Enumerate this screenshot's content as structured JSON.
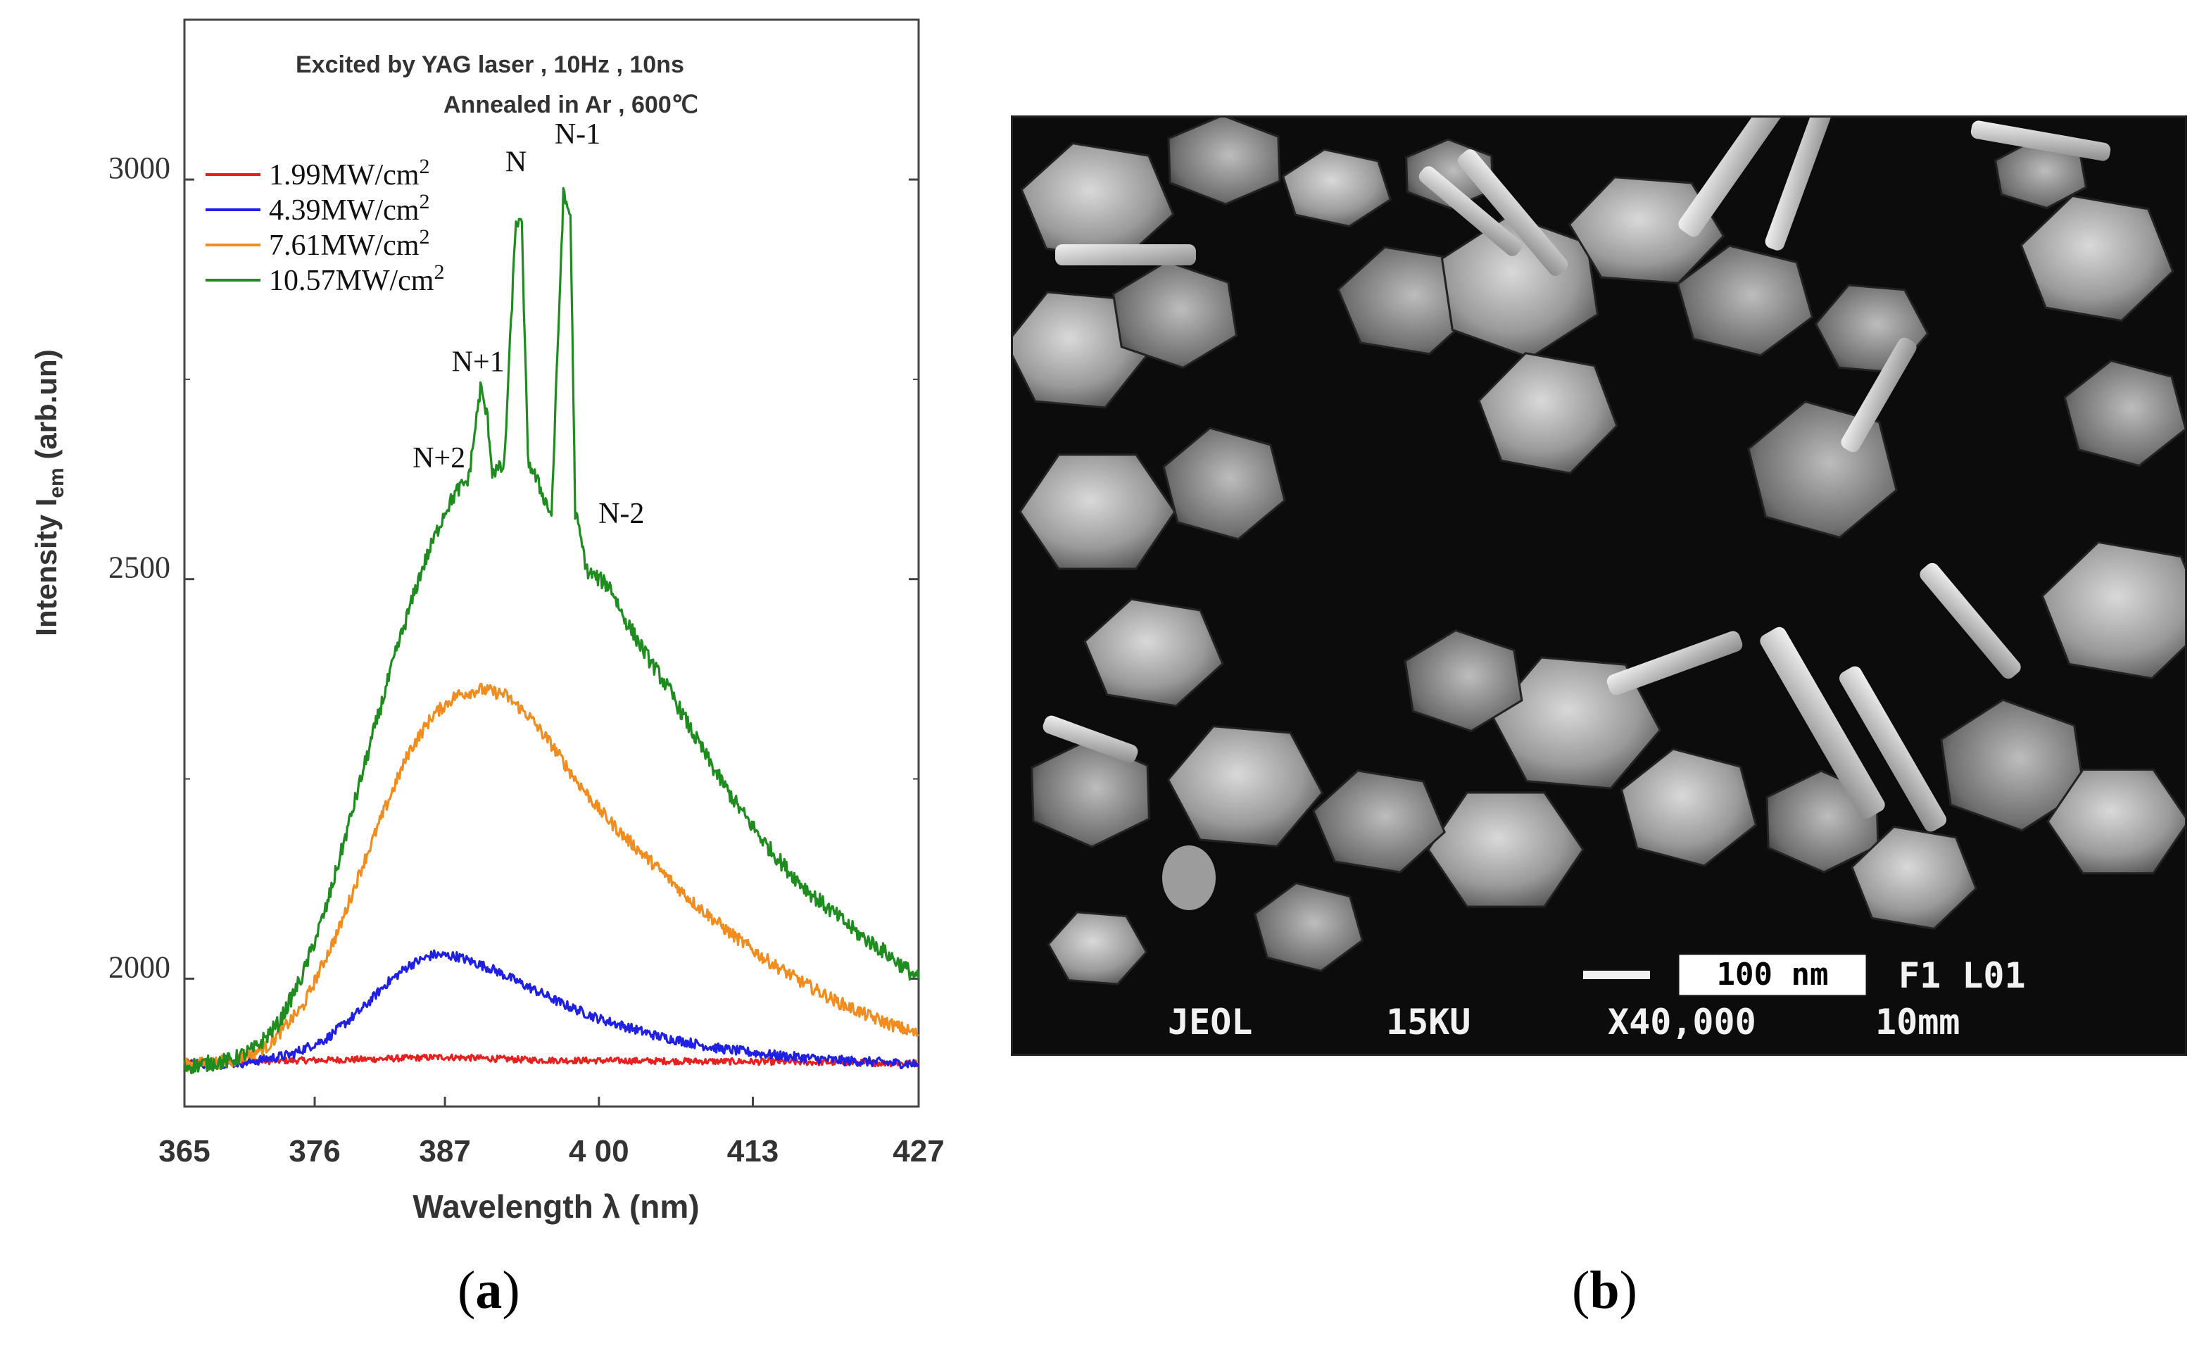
{
  "figure_a": {
    "panel_label": "a",
    "chart_data": {
      "type": "line",
      "title_line1": "Excited by YAG laser , 10Hz , 10ns",
      "title_line2": "Annealed in Ar , 600℃",
      "xlabel": "Wavelength λ (nm)",
      "ylabel_main": "Intensity I",
      "ylabel_sub": "em",
      "ylabel_unit": " (arb.un)",
      "xlim": [
        365,
        427
      ],
      "ylim": [
        1840,
        3200
      ],
      "x_ticks": [
        365,
        376,
        387,
        400,
        413,
        427
      ],
      "x_tick_labels": [
        "365",
        "376",
        "387",
        "4 00",
        "413",
        "427"
      ],
      "y_ticks": [
        2000,
        2500,
        3000
      ],
      "y_tick_labels": [
        "2000",
        "2500",
        "3000"
      ],
      "legend_position": "top-left",
      "series": [
        {
          "name": "1.99MW/cm",
          "sup": "2",
          "color": "#e8211f",
          "noise": 4,
          "points": [
            [
              365,
              1895
            ],
            [
              372,
              1897
            ],
            [
              380,
              1899
            ],
            [
              387,
              1902
            ],
            [
              395,
              1898
            ],
            [
              405,
              1897
            ],
            [
              415,
              1896
            ],
            [
              427,
              1894
            ]
          ]
        },
        {
          "name": "4.39MW/cm",
          "sup": "2",
          "color": "#1f1fe6",
          "noise": 6,
          "points": [
            [
              365,
              1893
            ],
            [
              370,
              1895
            ],
            [
              374,
              1905
            ],
            [
              377,
              1925
            ],
            [
              380,
              1962
            ],
            [
              382,
              1993
            ],
            [
              384,
              2017
            ],
            [
              386,
              2030
            ],
            [
              388,
              2028
            ],
            [
              391,
              2012
            ],
            [
              394,
              1990
            ],
            [
              397,
              1968
            ],
            [
              400,
              1950
            ],
            [
              405,
              1928
            ],
            [
              410,
              1913
            ],
            [
              415,
              1904
            ],
            [
              420,
              1898
            ],
            [
              427,
              1893
            ]
          ]
        },
        {
          "name": "7.61MW/cm",
          "sup": "2",
          "color": "#f28c1e",
          "noise": 8,
          "points": [
            [
              365,
              1892
            ],
            [
              369,
              1897
            ],
            [
              372,
              1915
            ],
            [
              375,
              1965
            ],
            [
              378,
              2060
            ],
            [
              380,
              2140
            ],
            [
              382,
              2215
            ],
            [
              384,
              2285
            ],
            [
              386,
              2330
            ],
            [
              388,
              2355
            ],
            [
              390,
              2362
            ],
            [
              392,
              2356
            ],
            [
              394,
              2330
            ],
            [
              396,
              2293
            ],
            [
              398,
              2250
            ],
            [
              400,
              2212
            ],
            [
              402,
              2180
            ],
            [
              405,
              2138
            ],
            [
              408,
              2095
            ],
            [
              411,
              2058
            ],
            [
              414,
              2025
            ],
            [
              417,
              1997
            ],
            [
              420,
              1972
            ],
            [
              423,
              1952
            ],
            [
              427,
              1930
            ]
          ]
        },
        {
          "name": "10.57MW/cm",
          "sup": "2",
          "color": "#1e8c1e",
          "noise": 10,
          "points": [
            [
              365,
              1890
            ],
            [
              369,
              1898
            ],
            [
              371,
              1913
            ],
            [
              373,
              1945
            ],
            [
              375,
              2005
            ],
            [
              377,
              2090
            ],
            [
              379,
              2200
            ],
            [
              381,
              2310
            ],
            [
              383,
              2415
            ],
            [
              385,
              2510
            ],
            [
              387,
              2585
            ],
            [
              388,
              2610
            ],
            [
              389,
              2625
            ],
            [
              390,
              2740
            ],
            [
              390.6,
              2700
            ],
            [
              391,
              2635
            ],
            [
              392,
              2640
            ],
            [
              393,
              2950
            ],
            [
              393.5,
              2940
            ],
            [
              394,
              2650
            ],
            [
              395,
              2615
            ],
            [
              396,
              2580
            ],
            [
              397,
              2980
            ],
            [
              397.6,
              2955
            ],
            [
              398,
              2585
            ],
            [
              399,
              2510
            ],
            [
              400,
              2500
            ],
            [
              401,
              2490
            ],
            [
              402,
              2455
            ],
            [
              404,
              2405
            ],
            [
              406,
              2360
            ],
            [
              408,
              2305
            ],
            [
              410,
              2255
            ],
            [
              412,
              2210
            ],
            [
              414,
              2170
            ],
            [
              416,
              2135
            ],
            [
              418,
              2105
            ],
            [
              420,
              2080
            ],
            [
              422,
              2055
            ],
            [
              424,
              2035
            ],
            [
              427,
              2000
            ]
          ]
        }
      ],
      "annotations": [
        {
          "text": "N",
          "x": 393,
          "y": 3010
        },
        {
          "text": "N-1",
          "x": 398.2,
          "y": 3045
        },
        {
          "text": "N+1",
          "x": 389.8,
          "y": 2760
        },
        {
          "text": "N+2",
          "x": 386.5,
          "y": 2640
        },
        {
          "text": "N-2",
          "x": 401.9,
          "y": 2570
        }
      ]
    }
  },
  "figure_b": {
    "panel_label": "b",
    "scale_bar_label": "100 nm",
    "info_top_right": "F1 L01",
    "info_left": "JEOL",
    "voltage": "15KU",
    "magnification": "X40,000",
    "working_distance": "10mm"
  }
}
